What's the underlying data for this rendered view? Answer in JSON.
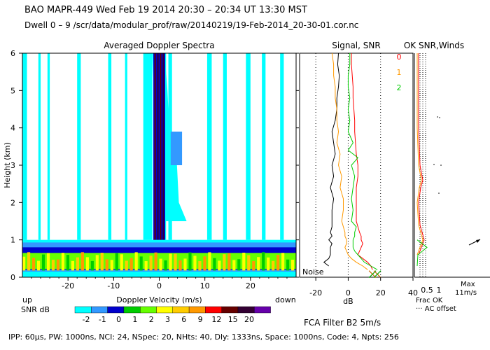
{
  "header": {
    "line1": "BAO  MAPR-449  Wed Feb 19 2014 20:30 – 20:34 UT 13:30 MST",
    "line2": "Dwell  0 –  9  /scr/data/modular_prof/raw/20140219/19-Feb-2014_20-30-01.cor.nc"
  },
  "footer": {
    "params": "IPP:  60μs,  PW: 1000ns,  NCI:  24,  NSpec: 20, NHts: 40,  Dly: 1333ns,  Space: 1000ns,  Code: 4,  Npts: 256",
    "fca": "FCA Filter B2   5m/s"
  },
  "colors": {
    "snr_scale": [
      "#00ffff",
      "#3399ff",
      "#0000cc",
      "#00cc00",
      "#66ff00",
      "#ffff00",
      "#ffcc00",
      "#ff9900",
      "#ff0000",
      "#660000",
      "#330033",
      "#6600aa"
    ],
    "line0": "#ff0000",
    "line1": "#ff9900",
    "line2": "#00cc00"
  },
  "chart_data": [
    {
      "type": "heatmap",
      "title": "Averaged Doppler Spectra",
      "xlabel": "Doppler Velocity (m/s)",
      "ylabel": "Height (km)",
      "xlim": [
        -30,
        30
      ],
      "ylim": [
        0,
        6
      ],
      "xticks": [
        -20,
        -10,
        0,
        10,
        20
      ],
      "yticks": [
        0,
        1,
        2,
        3,
        4,
        5,
        6
      ],
      "left_note": "up",
      "right_note": "down",
      "legend_title": "SNR dB",
      "legend_labels": [
        "-2",
        "-1",
        "0",
        "1",
        "2",
        "3",
        "6",
        "9",
        "12",
        "15",
        "20"
      ]
    },
    {
      "type": "line",
      "title": "Signal, SNR",
      "xlabel": "dB",
      "xlim": [
        -30,
        40
      ],
      "ylim": [
        0,
        6
      ],
      "xticks": [
        -20,
        0,
        20,
        40
      ],
      "note": "Noise",
      "series": [
        {
          "name": "signal",
          "x": [
            -6,
            -6.5,
            -5.5,
            -6,
            -7,
            -7,
            -8,
            -10,
            -9,
            -8,
            -10,
            -9,
            -11,
            -9,
            -10,
            -10,
            -10,
            -11,
            -10,
            -12,
            -10,
            -11,
            -11,
            -11,
            -12,
            -15,
            -12
          ],
          "y": [
            6,
            5.7,
            5.4,
            5.1,
            4.8,
            4.5,
            4.2,
            3.9,
            3.6,
            3.3,
            3,
            2.7,
            2.4,
            2.1,
            1.8,
            1.5,
            1.35,
            1.2,
            1.1,
            1.0,
            0.9,
            0.8,
            0.7,
            0.6,
            0.5,
            0.4,
            0.3
          ]
        },
        {
          "name": "0",
          "x": [
            2,
            2,
            2.5,
            3,
            3,
            3.5,
            4,
            4,
            4.5,
            5,
            6,
            6,
            5,
            5,
            5,
            5,
            6,
            7,
            8,
            8,
            9,
            8,
            7,
            6,
            9,
            12,
            14,
            15
          ],
          "y": [
            6,
            5.7,
            5.4,
            5.1,
            4.8,
            4.5,
            4.2,
            3.9,
            3.6,
            3.3,
            3,
            2.7,
            2.4,
            2.1,
            1.8,
            1.5,
            1.35,
            1.2,
            1.1,
            1.0,
            0.9,
            0.8,
            0.7,
            0.6,
            0.5,
            0.4,
            0.3,
            0.2
          ]
        },
        {
          "name": "1",
          "x": [
            -10,
            -9,
            -9,
            -8,
            -8,
            -7,
            -7,
            -6,
            -7,
            -5,
            -6,
            -4,
            -5,
            -3,
            -3,
            -4,
            -3,
            -2,
            -2,
            -1,
            -1,
            -2,
            -1,
            0,
            2,
            5,
            9,
            12
          ],
          "y": [
            6,
            5.7,
            5.4,
            5.1,
            4.8,
            4.5,
            4.2,
            3.9,
            3.6,
            3.3,
            3,
            2.7,
            2.4,
            2.1,
            1.8,
            1.5,
            1.35,
            1.2,
            1.1,
            1.0,
            0.9,
            0.8,
            0.7,
            0.6,
            0.5,
            0.4,
            0.3,
            0.2
          ]
        },
        {
          "name": "2",
          "x": [
            1,
            1,
            0,
            0,
            1,
            0,
            1,
            0,
            3,
            0,
            6,
            2,
            4,
            3,
            2,
            3,
            2,
            5,
            4,
            4,
            3,
            3,
            3,
            4,
            6,
            8,
            10,
            14,
            18
          ],
          "y": [
            6,
            5.7,
            5.4,
            5.1,
            4.8,
            4.5,
            4.2,
            3.9,
            3.6,
            3.4,
            3.2,
            3.0,
            2.7,
            2.4,
            2.1,
            1.8,
            1.5,
            1.35,
            1.2,
            1.1,
            1.0,
            0.9,
            0.8,
            0.7,
            0.6,
            0.5,
            0.4,
            0.3,
            0.2
          ]
        }
      ],
      "markers": [
        {
          "x": 15,
          "y": 0.08
        },
        {
          "x": 18,
          "y": 0.08
        }
      ]
    },
    {
      "type": "line",
      "title": "OK SNR,Winds",
      "legend": [
        "0",
        "1",
        "2"
      ],
      "xlim": [
        0,
        2
      ],
      "ylim": [
        0,
        6
      ],
      "xticks": [
        "0.5",
        "1"
      ],
      "xlabel_lines": [
        "Frac OK",
        "··· AC offset"
      ],
      "scale_labels": [
        "Max",
        "11m/s"
      ]
    }
  ]
}
